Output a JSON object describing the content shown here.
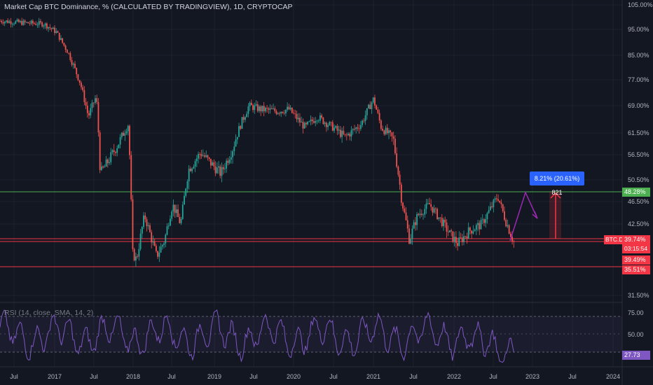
{
  "header": {
    "title": "Market Cap BTC Dominance, % (CALCULATED BY TRADINGVIEW), 1D, CRYPTOCAP"
  },
  "rsi": {
    "label": "RSI (14, close, SMA, 14, 2)",
    "value_tag": "27.73",
    "levels": [
      "75.00",
      "50.00",
      "25.00"
    ]
  },
  "price_axis": {
    "ticks": [
      "105.00%",
      "95.00%",
      "85.00%",
      "77.00%",
      "69.00%",
      "61.50%",
      "56.50%",
      "50.50%",
      "46.50%",
      "42.50%",
      "31.50%"
    ]
  },
  "time_axis": {
    "ticks": [
      "Jul",
      "2017",
      "Jul",
      "2018",
      "Jul",
      "2019",
      "Jul",
      "2020",
      "Jul",
      "2021",
      "Jul",
      "2022",
      "Jul",
      "2023",
      "Jul",
      "2024"
    ]
  },
  "tags": {
    "level_upper": "48.28%",
    "symbol": "BTC.D",
    "last_price": "39.74%",
    "countdown": "03:15:54",
    "level_mid": "39.49%",
    "level_lower": "35.51%"
  },
  "measure": {
    "label": "8.21% (20.61%) 821"
  },
  "colors": {
    "background": "#131722",
    "up_candle": "#26a69a",
    "down_candle": "#ef5350",
    "green_line": "#4caf50",
    "red_line": "#f23645",
    "rsi_line": "#7e57c2",
    "arrow": "#9c27b0",
    "measure_blue": "#2962ff"
  },
  "chart_data": {
    "type": "line",
    "series": [
      {
        "values": [
          [
            2016.35,
            98.5
          ],
          [
            2016.6,
            97.8
          ],
          [
            2016.9,
            97.2
          ],
          [
            2017.05,
            94
          ],
          [
            2017.2,
            86
          ],
          [
            2017.35,
            76
          ],
          [
            2017.45,
            66
          ],
          [
            2017.55,
            72
          ],
          [
            2017.6,
            52
          ],
          [
            2017.7,
            55
          ],
          [
            2017.85,
            60
          ],
          [
            2017.95,
            64
          ],
          [
            2018.0,
            38
          ],
          [
            2018.05,
            37
          ],
          [
            2018.15,
            44
          ],
          [
            2018.3,
            37.5
          ],
          [
            2018.4,
            40
          ],
          [
            2018.5,
            46
          ],
          [
            2018.6,
            42.5
          ],
          [
            2018.7,
            53
          ],
          [
            2018.85,
            57
          ],
          [
            2018.95,
            55
          ],
          [
            2019.1,
            52
          ],
          [
            2019.25,
            58
          ],
          [
            2019.35,
            64
          ],
          [
            2019.45,
            69
          ],
          [
            2019.6,
            68
          ],
          [
            2019.8,
            67.5
          ],
          [
            2019.95,
            68
          ],
          [
            2020.15,
            63
          ],
          [
            2020.3,
            66
          ],
          [
            2020.5,
            63
          ],
          [
            2020.65,
            60.5
          ],
          [
            2020.85,
            64
          ],
          [
            2021.0,
            71
          ],
          [
            2021.1,
            63
          ],
          [
            2021.25,
            60
          ],
          [
            2021.35,
            47
          ],
          [
            2021.45,
            40
          ],
          [
            2021.55,
            44
          ],
          [
            2021.7,
            46
          ],
          [
            2021.85,
            43
          ],
          [
            2021.95,
            41
          ],
          [
            2022.05,
            39.5
          ],
          [
            2022.2,
            41.5
          ],
          [
            2022.35,
            42.5
          ],
          [
            2022.45,
            45
          ],
          [
            2022.55,
            47.5
          ],
          [
            2022.65,
            43
          ],
          [
            2022.75,
            39.74
          ]
        ]
      }
    ],
    "ylim": [
      30,
      105
    ],
    "xlim": [
      2016.35,
      2024.1
    ]
  }
}
